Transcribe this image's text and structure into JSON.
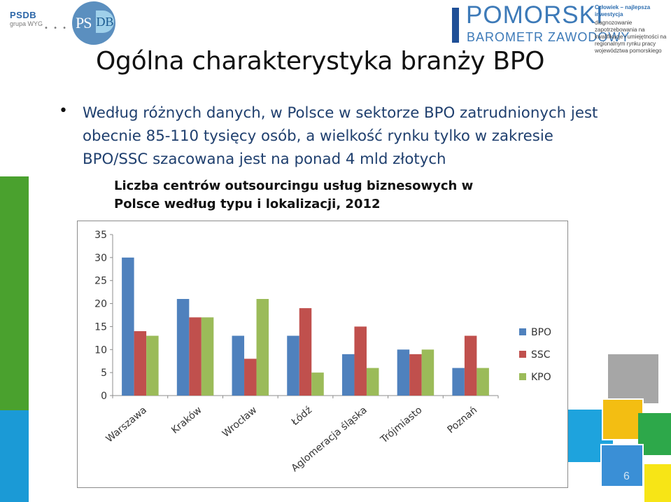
{
  "header": {
    "psdb_small_label": "PSDB",
    "psdb_small_sub": "grupa WYG",
    "psdb_logo_text": "PS",
    "psdb_logo_letter": "DB",
    "pomorski_title": "POMORSKI",
    "pomorski_subtitle": "BAROMETR ZAWODOWY",
    "pomorski_tagline_title": "Człowiek – najlepsza inwestycja",
    "pomorski_tagline_text": "diagnozowanie zapotrzebowania na kwalifikacje i umiejętności na regionalnym rynku pracy województwa pomorskiego",
    "brand_blue": "#3d7ab8"
  },
  "slide": {
    "title": "Ogólna charakterystyka branży BPO",
    "bullet_marker": "•",
    "bullet_text": "Według różnych danych, w Polsce w sektorze BPO zatrudnionych jest obecnie 85-110 tysięcy osób, a wielkość rynku tylko w zakresie BPO/SSC szacowana jest na ponad 4 mld złotych",
    "chart_title": "Liczba centrów outsourcingu usług biznesowych w Polsce według typu i lokalizacji, 2012",
    "page_number": "6"
  },
  "chart_data": {
    "type": "bar",
    "title": "Liczba centrów outsourcingu usług biznesowych w Polsce według typu i lokalizacji, 2012",
    "categories": [
      "Warszawa",
      "Kraków",
      "Wrocław",
      "Łódź",
      "Aglomeracja śląska",
      "Trójmiasto",
      "Poznań"
    ],
    "series": [
      {
        "name": "BPO",
        "color": "#4f81bd",
        "values": [
          30,
          21,
          13,
          13,
          9,
          10,
          6
        ]
      },
      {
        "name": "SSC",
        "color": "#c0504d",
        "values": [
          14,
          17,
          8,
          19,
          15,
          9,
          13
        ]
      },
      {
        "name": "KPO",
        "color": "#9bbb59",
        "values": [
          13,
          17,
          21,
          5,
          6,
          10,
          6
        ]
      }
    ],
    "yticks": [
      "0",
      "5",
      "10",
      "15",
      "20",
      "25",
      "30",
      "35"
    ],
    "ylim": [
      0,
      35
    ],
    "xlabel": "",
    "ylabel": "",
    "legend_position": "right",
    "grid": false
  }
}
